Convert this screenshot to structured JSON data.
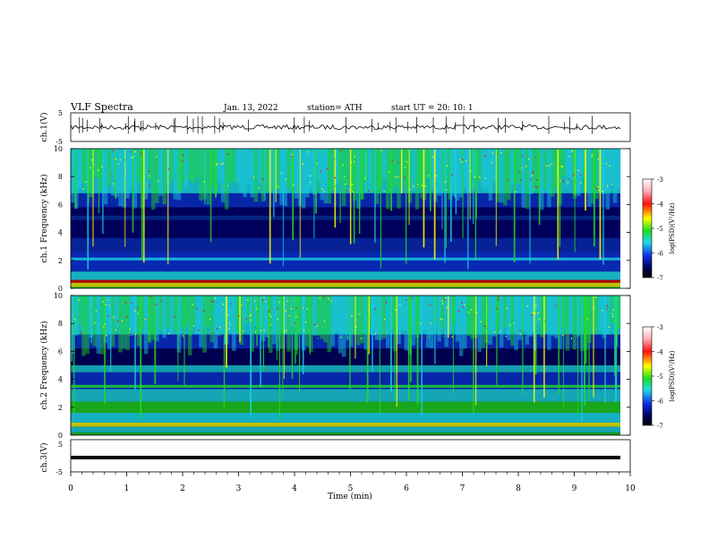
{
  "header": {
    "title": "VLF  Spectra",
    "date": "Jan.  13,  2022",
    "station": "station= ATH",
    "start": "start  UT  =   20: 10: 1"
  },
  "colors": {
    "black": "#000000",
    "navy": "#00007d",
    "blue": "#0a2fd0",
    "cyan": "#1ad0e0",
    "green": "#22dd22",
    "yellow": "#ffff00",
    "red": "#ff0000",
    "pink": "#ff9aa0"
  },
  "chart_data": [
    {
      "type": "line",
      "panel": "ch1-waveform",
      "ylabel": "ch.1(V)",
      "ylim": [
        -5,
        5
      ],
      "yticks": [
        "5",
        "-5"
      ],
      "xlim": [
        0,
        10
      ],
      "series": [
        {
          "values": "noisy trace around 0 V with spikes"
        }
      ]
    },
    {
      "type": "heatmap",
      "panel": "ch1-spectrogram",
      "ylabel": "ch.1 Frequency (kHz)",
      "ylim": [
        0,
        10
      ],
      "yticks": [
        "0",
        "2",
        "4",
        "6",
        "8",
        "10"
      ],
      "colorbar": {
        "label": "log(PSD)(V²/Hz)",
        "range": [
          -7,
          -3
        ],
        "ticks": [
          "-3",
          "-4",
          "-5",
          "-6",
          "-7"
        ]
      }
    },
    {
      "type": "heatmap",
      "panel": "ch2-spectrogram",
      "ylabel": "ch.2 Frequency (kHz)",
      "ylim": [
        0,
        10
      ],
      "yticks": [
        "0",
        "2",
        "4",
        "6",
        "8",
        "10"
      ],
      "colorbar": {
        "label": "log(PSD)(V²/Hz)",
        "range": [
          -7,
          -3
        ],
        "ticks": [
          "-3",
          "-4",
          "-5",
          "-6",
          "-7"
        ]
      }
    },
    {
      "type": "line",
      "panel": "ch3-waveform",
      "ylabel": "ch.3(V)",
      "ylim": [
        -5,
        5
      ],
      "yticks": [
        "5",
        "-5"
      ],
      "xlim": [
        0,
        10
      ],
      "series": [
        {
          "values": "flat trace near -2 V"
        }
      ]
    }
  ],
  "xaxis": {
    "label": "Time  (min)",
    "ticks": [
      "0",
      "1",
      "2",
      "3",
      "4",
      "5",
      "6",
      "7",
      "8",
      "9",
      "10"
    ]
  }
}
